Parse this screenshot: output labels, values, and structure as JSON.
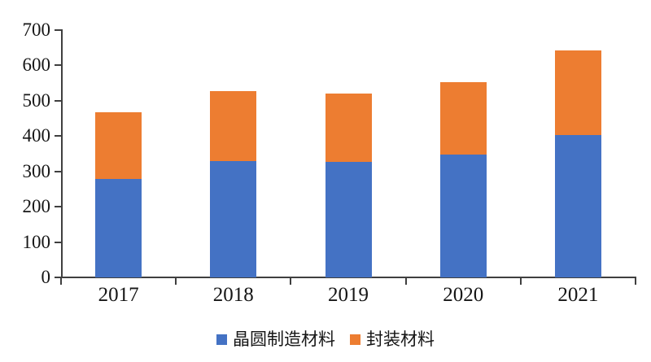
{
  "chart_data": {
    "type": "bar",
    "stacked": true,
    "title": "",
    "xlabel": "",
    "ylabel": "",
    "categories": [
      "2017",
      "2018",
      "2019",
      "2020",
      "2021"
    ],
    "series": [
      {
        "name": "晶圆制造材料",
        "color": "#4472C4",
        "values": [
          278,
          329,
          328,
          348,
          404
        ]
      },
      {
        "name": "封装材料",
        "color": "#ED7D31",
        "values": [
          190,
          198,
          192,
          205,
          238
        ]
      }
    ],
    "ylim": [
      0,
      700
    ],
    "ytick_step": 100,
    "y_tick_labels": [
      "0",
      "100",
      "200",
      "300",
      "400",
      "500",
      "600",
      "700"
    ],
    "grid": false,
    "legend_position": "bottom",
    "tick_style": "outside"
  },
  "colors": {
    "axis": "#3f3f3f",
    "text": "#161616",
    "background": "#ffffff"
  }
}
